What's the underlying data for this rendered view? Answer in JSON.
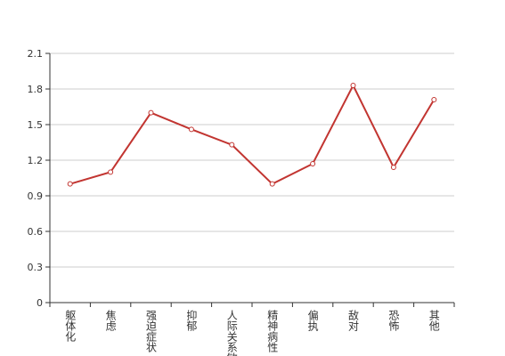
{
  "chart_data": {
    "type": "line",
    "categories": [
      "躯体化",
      "焦虑",
      "强迫症状",
      "抑郁",
      "人际关系敏感",
      "精神病性",
      "偏执",
      "敌对",
      "恐怖",
      "其他"
    ],
    "series": [
      {
        "color": "#c23531",
        "values": [
          1.0,
          1.1,
          1.6,
          1.46,
          1.33,
          1.0,
          1.17,
          1.83,
          1.14,
          1.71
        ]
      }
    ],
    "ylim": [
      0,
      2.1
    ],
    "yticks": [
      0,
      0.3,
      0.6,
      0.9,
      1.2,
      1.5,
      1.8,
      2.1
    ],
    "grid": true
  }
}
